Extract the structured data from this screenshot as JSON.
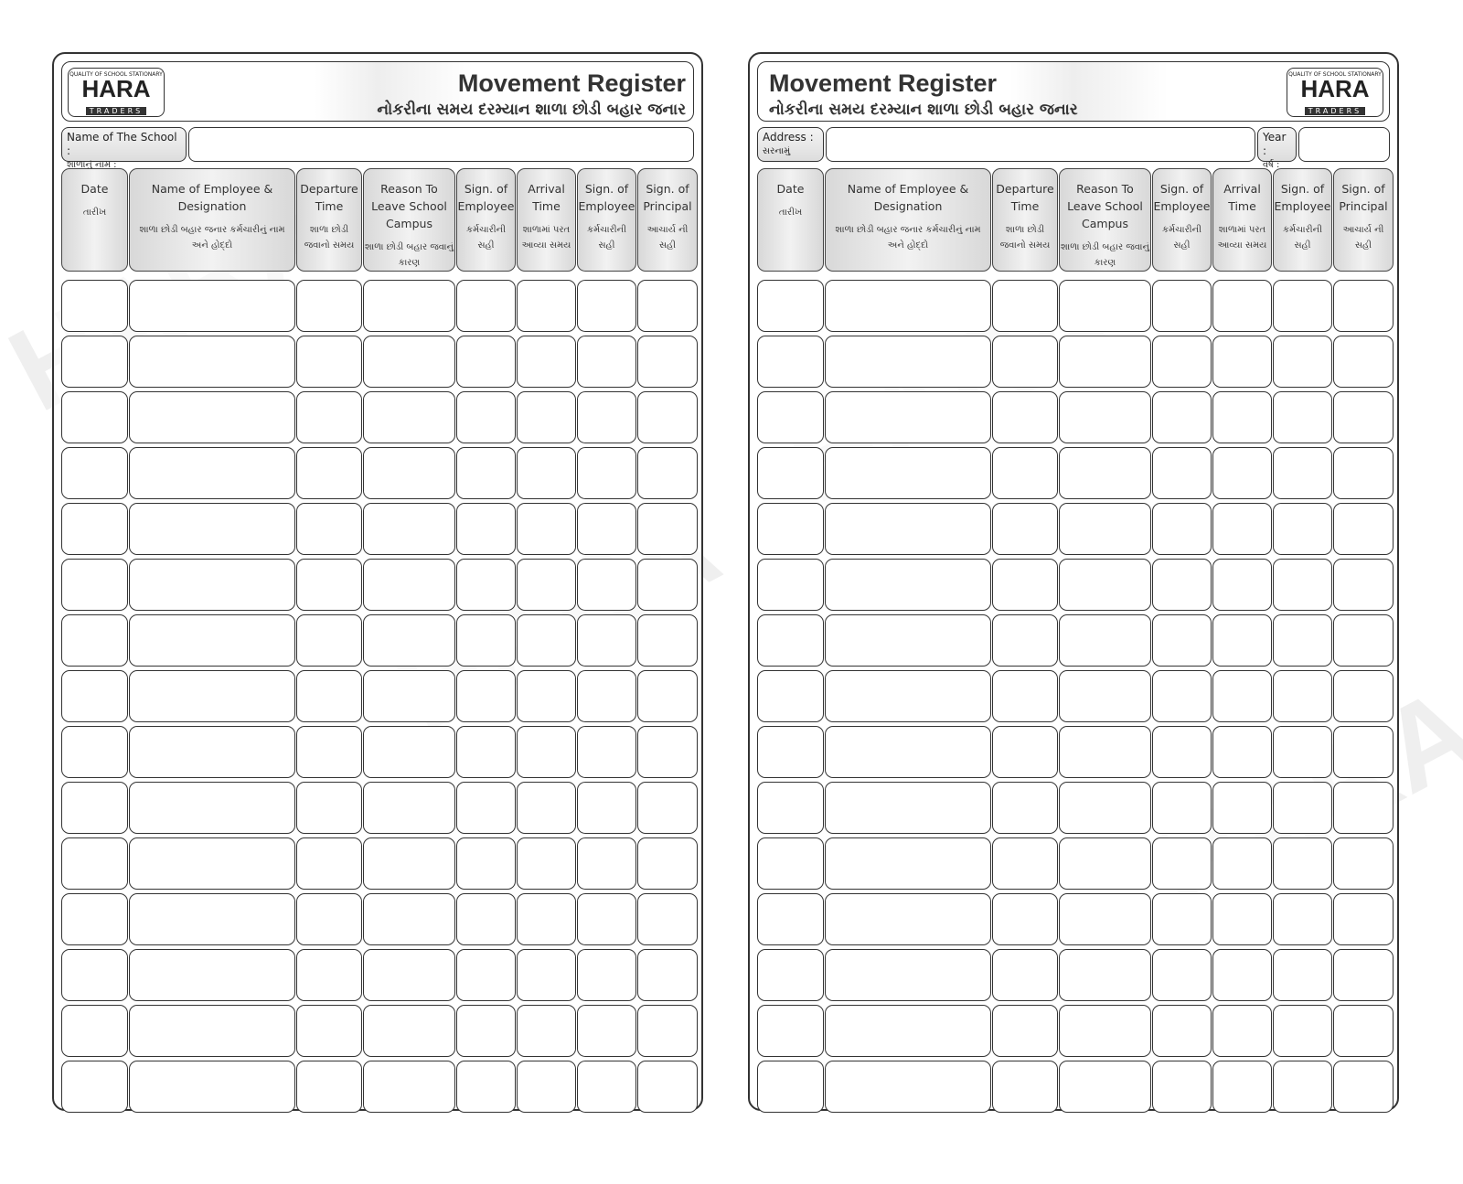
{
  "brand": {
    "tagline": "QUALITY OF SCHOOL STATIONARY",
    "name": "HARA",
    "sub": "TRADERS",
    "watermark": "HARA"
  },
  "title": "Movement Register",
  "subtitle": "નોકરીના સમય દરમ્યાન શાળા છોડી બહાર જનાર",
  "left": {
    "school_label": "Name of The School :",
    "school_label_gu": "શાળાનું નામ :",
    "school_value": ""
  },
  "right": {
    "address_label": "Address :",
    "address_label_gu": "સરનામું",
    "address_value": "",
    "year_label": "Year :",
    "year_label_gu": "વર્ષ :",
    "year_value": ""
  },
  "columns": [
    {
      "en": "Date",
      "gu": "તારીખ"
    },
    {
      "en": "Name of Employee & Designation",
      "gu": "શાળા છોડી બહાર જનાર કર્મચારીનું નામ અને હોદ્દો"
    },
    {
      "en": "Departure Time",
      "gu": "શાળા છોડી જવાનો સમય"
    },
    {
      "en": "Reason To Leave School Campus",
      "gu": "શાળા છોડી બહાર જવાનું કારણ"
    },
    {
      "en": "Sign. of Employee",
      "gu": "કર્મચારીની સહી"
    },
    {
      "en": "Arrival Time",
      "gu": "શાળામાં પરત આવ્યા સમય"
    },
    {
      "en": "Sign. of Employee",
      "gu": "કર્મચારીની સહી"
    },
    {
      "en": "Sign. of Principal",
      "gu": "આચાર્ય ની સહી"
    }
  ],
  "row_count": 15
}
